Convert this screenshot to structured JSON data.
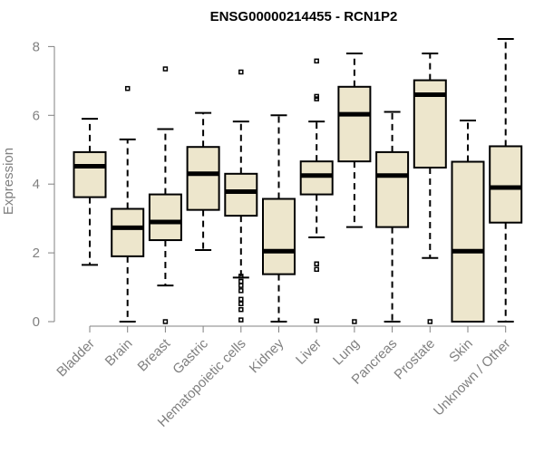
{
  "chart_data": {
    "type": "boxplot",
    "title": "ENSG00000214455 - RCN1P2",
    "xlabel": "",
    "ylabel": "Expression",
    "ylim": [
      0,
      8.3
    ],
    "yticks": [
      0,
      2,
      4,
      6,
      8
    ],
    "colors": {
      "box_fill": "#ede6cc",
      "stroke": "#000000",
      "axis": "#808080",
      "tick_text": "#808080"
    },
    "categories": [
      "Bladder",
      "Brain",
      "Breast",
      "Gastric",
      "Hematopoietic cells",
      "Kidney",
      "Liver",
      "Lung",
      "Pancreas",
      "Prostate",
      "Skin",
      "Unknown / Other"
    ],
    "boxes": [
      {
        "name": "Bladder",
        "min": 1.65,
        "q1": 3.62,
        "median": 4.52,
        "q3": 4.93,
        "max": 5.9,
        "outliers": []
      },
      {
        "name": "Brain",
        "min": 0.0,
        "q1": 1.9,
        "median": 2.73,
        "q3": 3.28,
        "max": 5.3,
        "outliers": [
          6.78
        ]
      },
      {
        "name": "Breast",
        "min": 1.05,
        "q1": 2.37,
        "median": 2.9,
        "q3": 3.7,
        "max": 5.6,
        "outliers": [
          7.35,
          0.0
        ]
      },
      {
        "name": "Gastric",
        "min": 2.08,
        "q1": 3.25,
        "median": 4.3,
        "q3": 5.08,
        "max": 6.07,
        "outliers": []
      },
      {
        "name": "Hematopoietic cells",
        "min": 1.28,
        "q1": 3.08,
        "median": 3.78,
        "q3": 4.3,
        "max": 5.82,
        "outliers": [
          7.26,
          1.32,
          1.17,
          1.05,
          0.9,
          0.65,
          0.52,
          0.35,
          0.05
        ]
      },
      {
        "name": "Kidney",
        "min": 0.0,
        "q1": 1.38,
        "median": 2.05,
        "q3": 3.57,
        "max": 6.0,
        "outliers": []
      },
      {
        "name": "Liver",
        "min": 2.45,
        "q1": 3.7,
        "median": 4.25,
        "q3": 4.66,
        "max": 5.82,
        "outliers": [
          7.58,
          6.55,
          6.48,
          1.68,
          1.52,
          0.02
        ]
      },
      {
        "name": "Lung",
        "min": 2.75,
        "q1": 4.66,
        "median": 6.03,
        "q3": 6.83,
        "max": 7.8,
        "outliers": [
          0.0
        ]
      },
      {
        "name": "Pancreas",
        "min": 0.0,
        "q1": 2.75,
        "median": 4.25,
        "q3": 4.93,
        "max": 6.1,
        "outliers": []
      },
      {
        "name": "Prostate",
        "min": 1.85,
        "q1": 4.48,
        "median": 6.6,
        "q3": 7.02,
        "max": 7.8,
        "outliers": [
          0.0
        ]
      },
      {
        "name": "Skin",
        "min": 0.0,
        "q1": 0.0,
        "median": 2.05,
        "q3": 4.65,
        "max": 5.85,
        "outliers": []
      },
      {
        "name": "Unknown / Other",
        "min": 0.0,
        "q1": 2.88,
        "median": 3.9,
        "q3": 5.1,
        "max": 8.22,
        "outliers": []
      }
    ]
  }
}
